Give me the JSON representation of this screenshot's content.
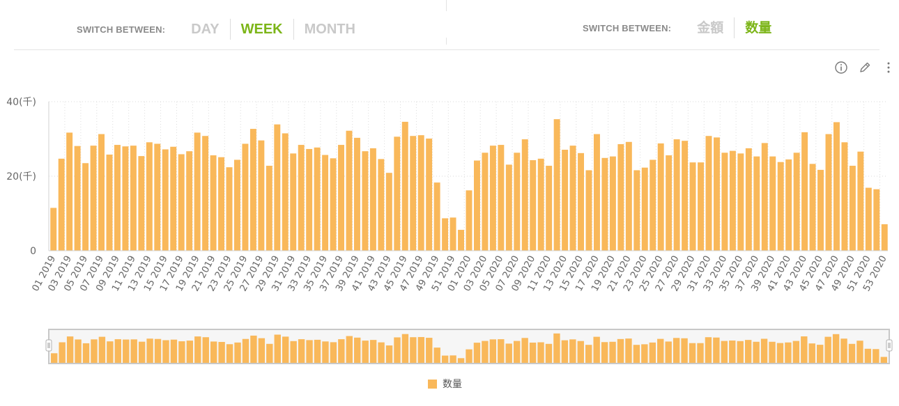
{
  "left_switch": {
    "label": "SWITCH BETWEEN:",
    "options": [
      "DAY",
      "WEEK",
      "MONTH"
    ],
    "active": "WEEK"
  },
  "right_switch": {
    "label": "SWITCH BETWEEN:",
    "options": [
      "金額",
      "数量"
    ],
    "active": "数量"
  },
  "toolbar": {
    "icons": [
      "info-icon",
      "edit-pencil-icon",
      "more-vertical-icon"
    ]
  },
  "colors": {
    "accent": "#7cb518",
    "bar": "#f9b85a",
    "inactive": "#c9c9c9"
  },
  "chart_data": {
    "type": "bar",
    "series": [
      {
        "name": "数量",
        "values": [
          11.5,
          24.7,
          31.7,
          28.1,
          23.5,
          28.2,
          31.3,
          25.8,
          28.4,
          28,
          28.2,
          25.4,
          29.1,
          28.7,
          27.2,
          27.9,
          25.9,
          26.7,
          31.7,
          30.8,
          25.6,
          25.1,
          22.4,
          24.4,
          28.7,
          32.7,
          29.6,
          22.8,
          33.9,
          31.5,
          26.1,
          28.4,
          27.3,
          27.7,
          25.7,
          24.8,
          28.4,
          32.2,
          30.3,
          26.7,
          27.5,
          24.6,
          20.9,
          30.6,
          34.6,
          30.8,
          31,
          30.1,
          18.3,
          8.7,
          8.9,
          5.6,
          16.2,
          24.2,
          26.3,
          28.2,
          28.4,
          23.1,
          26.3,
          29.9,
          24.3,
          24.7,
          22.8,
          35.3,
          27.1,
          28.2,
          26.2,
          21.6,
          31.3,
          24.9,
          25.3,
          28.6,
          29.2,
          21.6,
          22.3,
          24.4,
          28.8,
          25.6,
          29.9,
          29.5,
          23.7,
          23.7,
          30.8,
          30.4,
          26.3,
          26.8,
          26.1,
          27.5,
          25.3,
          28.9,
          25.3,
          23.8,
          24.5,
          26.3,
          31.8,
          23.3,
          21.7,
          31.3,
          34.5,
          29.1,
          22.8,
          26.6,
          16.9,
          16.5,
          7.1
        ]
      }
    ],
    "x_tick_labels": [
      "01 2019",
      "03 2019",
      "05 2019",
      "07 2019",
      "09 2019",
      "11 2019",
      "13 2019",
      "15 2019",
      "17 2019",
      "19 2019",
      "21 2019",
      "23 2019",
      "25 2019",
      "27 2019",
      "29 2019",
      "31 2019",
      "33 2019",
      "35 2019",
      "37 2019",
      "39 2019",
      "41 2019",
      "43 2019",
      "45 2019",
      "47 2019",
      "49 2019",
      "51 2019",
      "01 2020",
      "03 2020",
      "05 2020",
      "07 2020",
      "09 2020",
      "11 2020",
      "13 2020",
      "15 2020",
      "17 2020",
      "19 2020",
      "21 2020",
      "23 2020",
      "25 2020",
      "27 2020",
      "29 2020",
      "31 2020",
      "33 2020",
      "35 2020",
      "37 2020",
      "39 2020",
      "41 2020",
      "43 2020",
      "45 2020",
      "47 2020",
      "49 2020",
      "51 2020",
      "53 2020"
    ],
    "y_tick_labels": [
      "0",
      "20(千)",
      "40(千)"
    ],
    "ylim": [
      0,
      40
    ],
    "legend": [
      "数量"
    ],
    "legend_position": "bottom-center",
    "grid": true
  }
}
